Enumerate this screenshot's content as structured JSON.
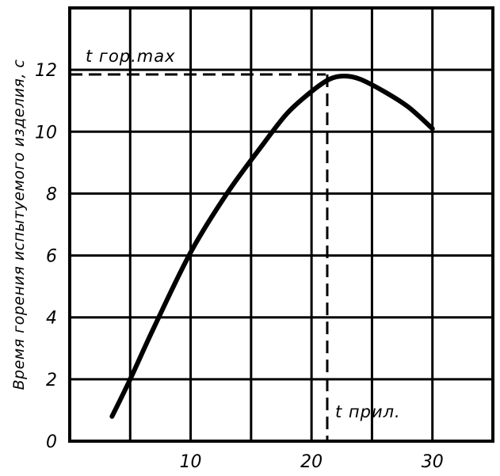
{
  "chart_data": {
    "type": "line",
    "title": "",
    "xlabel": "",
    "ylabel": "Время горения испытуемого изделия, с",
    "xlim": [
      0,
      35
    ],
    "ylim": [
      0,
      14
    ],
    "x_ticks": [
      10,
      20,
      30
    ],
    "y_ticks": [
      0,
      2,
      4,
      6,
      8,
      10,
      12
    ],
    "grid": true,
    "series": [
      {
        "name": "curve",
        "x": [
          3.5,
          5,
          7,
          10,
          13,
          16,
          18,
          20,
          21.5,
          22.7,
          24,
          26,
          28,
          30
        ],
        "y": [
          0.8,
          2.0,
          3.7,
          6.1,
          8.0,
          9.6,
          10.6,
          11.3,
          11.7,
          11.8,
          11.7,
          11.3,
          10.8,
          10.1
        ]
      }
    ],
    "annotations": [
      {
        "id": "tmax",
        "text": "t гор.max",
        "value": 11.85,
        "axis": "y",
        "style": "dashed"
      },
      {
        "id": "tpril",
        "text": "t прил.",
        "value": 21.3,
        "axis": "x",
        "style": "dashed"
      }
    ]
  }
}
